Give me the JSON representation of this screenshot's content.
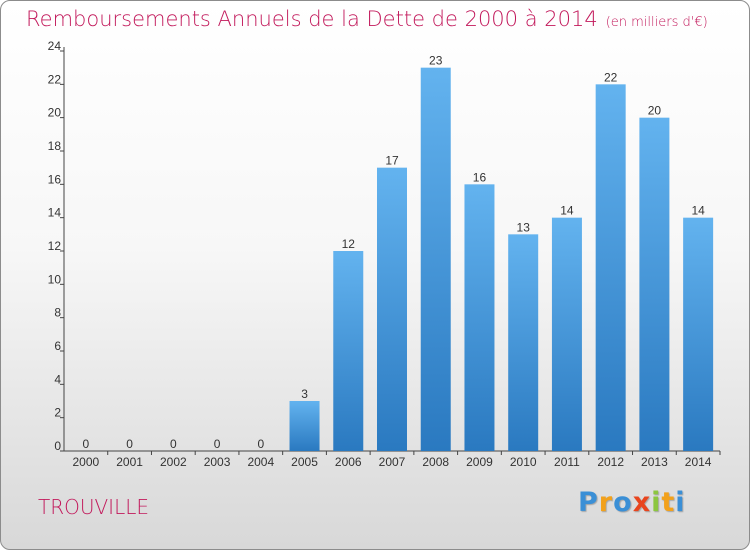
{
  "title": "Remboursements Annuels de la Dette de 2000 à 2014",
  "units": "(en milliers d'€)",
  "city": "TROUVILLE",
  "logo": {
    "letters": [
      {
        "ch": "P",
        "color": "#3a8fd6"
      },
      {
        "ch": "r",
        "color": "#f2a11b"
      },
      {
        "ch": "o",
        "color": "#3a8fd6"
      },
      {
        "ch": "x",
        "color": "#e8451e"
      },
      {
        "ch": "i",
        "color": "#8cc63f"
      },
      {
        "ch": "t",
        "color": "#f2a11b"
      },
      {
        "ch": "i",
        "color": "#3a8fd6"
      }
    ]
  },
  "colors": {
    "bar_top": "#63b3ef",
    "bar_bottom": "#2a79c0",
    "title": "#c2195b"
  },
  "chart_data": {
    "type": "bar",
    "categories": [
      "2000",
      "2001",
      "2002",
      "2003",
      "2004",
      "2005",
      "2006",
      "2007",
      "2008",
      "2009",
      "2010",
      "2011",
      "2012",
      "2013",
      "2014"
    ],
    "values": [
      0,
      0,
      0,
      0,
      0,
      3,
      12,
      17,
      23,
      16,
      13,
      14,
      22,
      20,
      14
    ],
    "ylim": [
      0,
      24
    ],
    "yticks": [
      0,
      2,
      4,
      6,
      8,
      10,
      12,
      14,
      16,
      18,
      20,
      22,
      24
    ],
    "grid": false,
    "xlabel": "",
    "ylabel": ""
  }
}
